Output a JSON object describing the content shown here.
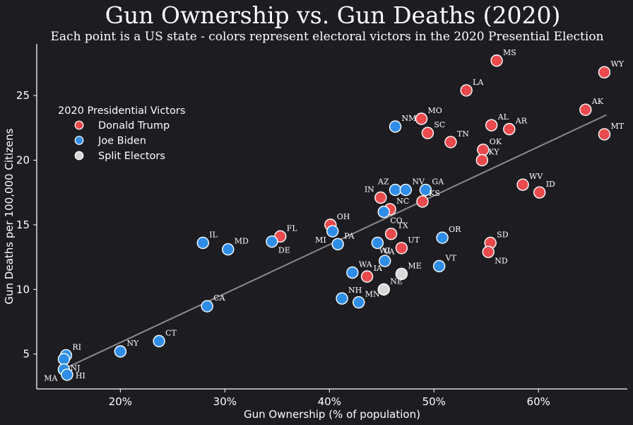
{
  "colors": {
    "background": "#1c1c21",
    "trump": "#ea4a4d",
    "biden": "#2f8de8",
    "split": "#d8d8d8",
    "trend": "#8a8a8c"
  },
  "chart_data": {
    "type": "scatter",
    "title": "Gun Ownership vs. Gun Deaths (2020)",
    "subtitle": "Each point is a US state - colors represent electoral victors in the 2020 Presential Election",
    "xlabel": "Gun Ownership (% of population)",
    "ylabel": "Gun Deaths per 100,000 Citizens",
    "xlim": [
      12,
      68.5
    ],
    "ylim": [
      2.3,
      29
    ],
    "xticks": [
      20,
      30,
      40,
      50,
      60
    ],
    "xtick_labels": [
      "20%",
      "30%",
      "40%",
      "50%",
      "60%"
    ],
    "yticks": [
      5,
      10,
      15,
      20,
      25
    ],
    "ytick_labels": [
      "5",
      "10",
      "15",
      "20",
      "25"
    ],
    "grid": false,
    "legend": {
      "title": "2020 Presidential Victors",
      "position": "upper-left",
      "entries": [
        {
          "label": "Donald Trump",
          "color": "#ea4a4d"
        },
        {
          "label": "Joe Biden",
          "color": "#2f8de8"
        },
        {
          "label": "Split Electors",
          "color": "#d8d8d8"
        }
      ]
    },
    "trend_line": {
      "x": [
        15,
        66.5
      ],
      "y": [
        4.0,
        23.5
      ]
    },
    "points": [
      {
        "state": "MS",
        "x": 56.0,
        "y": 27.7,
        "victor": "trump",
        "lpos": "ne"
      },
      {
        "state": "WY",
        "x": 66.3,
        "y": 26.8,
        "victor": "trump",
        "lpos": "ne"
      },
      {
        "state": "LA",
        "x": 53.1,
        "y": 25.4,
        "victor": "trump",
        "lpos": "ne"
      },
      {
        "state": "AK",
        "x": 64.5,
        "y": 23.9,
        "victor": "trump",
        "lpos": "ne"
      },
      {
        "state": "MO",
        "x": 48.8,
        "y": 23.2,
        "victor": "trump",
        "lpos": "ne"
      },
      {
        "state": "AL",
        "x": 55.5,
        "y": 22.7,
        "victor": "trump",
        "lpos": "ne"
      },
      {
        "state": "AR",
        "x": 57.2,
        "y": 22.4,
        "victor": "trump",
        "lpos": "ne"
      },
      {
        "state": "SC",
        "x": 49.4,
        "y": 22.1,
        "victor": "trump",
        "lpos": "ne"
      },
      {
        "state": "MT",
        "x": 66.3,
        "y": 22.0,
        "victor": "trump",
        "lpos": "ne"
      },
      {
        "state": "TN",
        "x": 51.6,
        "y": 21.4,
        "victor": "trump",
        "lpos": "ne"
      },
      {
        "state": "OK",
        "x": 54.7,
        "y": 20.8,
        "victor": "trump",
        "lpos": "ne"
      },
      {
        "state": "KY",
        "x": 54.6,
        "y": 20.0,
        "victor": "trump",
        "lpos": "ne"
      },
      {
        "state": "WV",
        "x": 58.5,
        "y": 18.1,
        "victor": "trump",
        "lpos": "ne"
      },
      {
        "state": "ID",
        "x": 60.1,
        "y": 17.5,
        "victor": "trump",
        "lpos": "ne"
      },
      {
        "state": "IN",
        "x": 44.9,
        "y": 17.1,
        "victor": "trump",
        "lpos": "nw"
      },
      {
        "state": "KS",
        "x": 48.9,
        "y": 16.8,
        "victor": "trump",
        "lpos": "ne"
      },
      {
        "state": "NC",
        "x": 45.8,
        "y": 16.2,
        "victor": "trump",
        "lpos": "ne"
      },
      {
        "state": "OH",
        "x": 40.1,
        "y": 15.0,
        "victor": "trump",
        "lpos": "ne"
      },
      {
        "state": "FL",
        "x": 35.3,
        "y": 14.1,
        "victor": "trump",
        "lpos": "ne"
      },
      {
        "state": "TX",
        "x": 45.9,
        "y": 14.3,
        "victor": "trump",
        "lpos": "ne"
      },
      {
        "state": "SD",
        "x": 55.4,
        "y": 13.6,
        "victor": "trump",
        "lpos": "ne"
      },
      {
        "state": "UT",
        "x": 46.9,
        "y": 13.2,
        "victor": "trump",
        "lpos": "ne"
      },
      {
        "state": "ND",
        "x": 55.2,
        "y": 12.9,
        "victor": "trump",
        "lpos": "se"
      },
      {
        "state": "IA",
        "x": 43.6,
        "y": 11.0,
        "victor": "trump",
        "lpos": "ne"
      },
      {
        "state": "NM",
        "x": 46.3,
        "y": 22.6,
        "victor": "biden",
        "lpos": "ne"
      },
      {
        "state": "AZ",
        "x": 46.3,
        "y": 17.7,
        "victor": "biden",
        "lpos": "nw"
      },
      {
        "state": "NV",
        "x": 47.3,
        "y": 17.7,
        "victor": "biden",
        "lpos": "ne"
      },
      {
        "state": "GA",
        "x": 49.2,
        "y": 17.7,
        "victor": "biden",
        "lpos": "ne"
      },
      {
        "state": "CO",
        "x": 45.2,
        "y": 16.0,
        "victor": "biden",
        "lpos": "se"
      },
      {
        "state": "MI",
        "x": 40.3,
        "y": 14.5,
        "victor": "biden",
        "lpos": "sw"
      },
      {
        "state": "PA",
        "x": 40.8,
        "y": 13.5,
        "victor": "biden",
        "lpos": "ne"
      },
      {
        "state": "IL",
        "x": 27.9,
        "y": 13.6,
        "victor": "biden",
        "lpos": "ne"
      },
      {
        "state": "DE",
        "x": 34.5,
        "y": 13.7,
        "victor": "biden",
        "lpos": "se"
      },
      {
        "state": "MD",
        "x": 30.3,
        "y": 13.1,
        "victor": "biden",
        "lpos": "ne"
      },
      {
        "state": "OR",
        "x": 50.8,
        "y": 14.0,
        "victor": "biden",
        "lpos": "ne"
      },
      {
        "state": "VA",
        "x": 44.6,
        "y": 13.6,
        "victor": "biden",
        "lpos": "se"
      },
      {
        "state": "WI",
        "x": 45.3,
        "y": 12.2,
        "victor": "biden",
        "lpos": "n"
      },
      {
        "state": "VT",
        "x": 50.5,
        "y": 11.8,
        "victor": "biden",
        "lpos": "ne"
      },
      {
        "state": "WA",
        "x": 42.2,
        "y": 11.3,
        "victor": "biden",
        "lpos": "ne"
      },
      {
        "state": "NH",
        "x": 41.2,
        "y": 9.3,
        "victor": "biden",
        "lpos": "ne"
      },
      {
        "state": "MN",
        "x": 42.8,
        "y": 9.0,
        "victor": "biden",
        "lpos": "ne"
      },
      {
        "state": "CA",
        "x": 28.3,
        "y": 8.7,
        "victor": "biden",
        "lpos": "ne"
      },
      {
        "state": "CT",
        "x": 23.7,
        "y": 6.0,
        "victor": "biden",
        "lpos": "ne"
      },
      {
        "state": "NY",
        "x": 20.0,
        "y": 5.2,
        "victor": "biden",
        "lpos": "ne"
      },
      {
        "state": "RI",
        "x": 14.8,
        "y": 4.9,
        "victor": "biden",
        "lpos": "ne"
      },
      {
        "state": "NJ",
        "x": 14.6,
        "y": 4.6,
        "victor": "biden",
        "lpos": "se"
      },
      {
        "state": "MA",
        "x": 14.6,
        "y": 3.8,
        "victor": "biden",
        "lpos": "sw"
      },
      {
        "state": "HI",
        "x": 14.9,
        "y": 3.4,
        "victor": "biden",
        "lpos": "e"
      },
      {
        "state": "ME",
        "x": 46.9,
        "y": 11.2,
        "victor": "split",
        "lpos": "ne"
      },
      {
        "state": "NE",
        "x": 45.2,
        "y": 10.0,
        "victor": "split",
        "lpos": "ne"
      }
    ]
  }
}
